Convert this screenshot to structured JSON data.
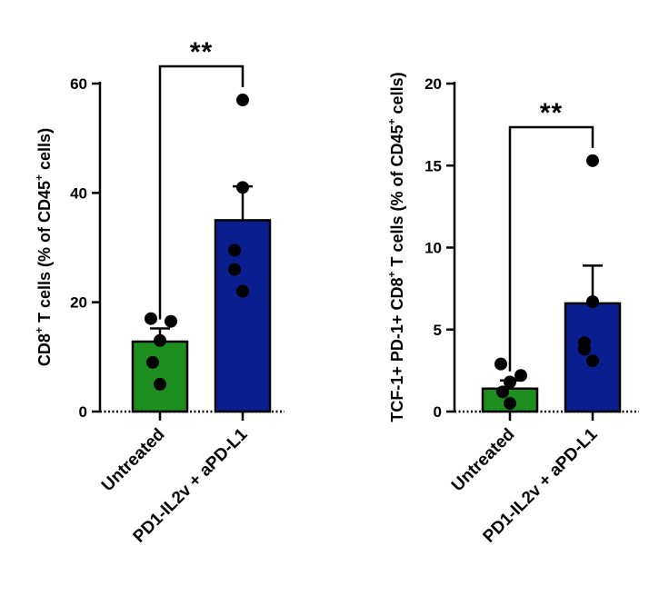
{
  "chart_data": [
    {
      "type": "bar",
      "title": "",
      "ylabel": "CD8+ T cells (% of CD45+ cells)",
      "ylabel_parts": [
        "CD8",
        "+",
        " T cells (% of  CD45",
        "+",
        " cells)"
      ],
      "ylim": [
        0,
        60
      ],
      "yticks": [
        0,
        20,
        40,
        60
      ],
      "categories": [
        "Untreated",
        "PD1-IL2v + aPD-L1"
      ],
      "values": [
        12.8,
        35.0
      ],
      "error": [
        2.4,
        6.2
      ],
      "points": [
        [
          17,
          16.5,
          13,
          9,
          5
        ],
        [
          57,
          41,
          29.5,
          26,
          22
        ]
      ],
      "colors": [
        "#1e8e1e",
        "#0a1f8f"
      ],
      "significance": "**"
    },
    {
      "type": "bar",
      "title": "",
      "ylabel": "TCF-1+ PD-1+ CD8+ T cells (% of CD45+ cells)",
      "ylabel_parts": [
        "TCF-1+ PD-1+ CD8",
        "+",
        " T cells (% of CD45",
        "+",
        " cells)"
      ],
      "ylim": [
        0,
        20
      ],
      "yticks": [
        0,
        5,
        10,
        15,
        20
      ],
      "categories": [
        "Untreated",
        "PD1-IL2v + aPD-L1"
      ],
      "values": [
        1.4,
        6.6
      ],
      "error": [
        0.5,
        2.3
      ],
      "points": [
        [
          2.9,
          2.2,
          1.8,
          1.2,
          0.5
        ],
        [
          15.3,
          6.7,
          4.2,
          3.8,
          3.1
        ]
      ],
      "colors": [
        "#1e8e1e",
        "#0a1f8f"
      ],
      "significance": "**"
    }
  ]
}
